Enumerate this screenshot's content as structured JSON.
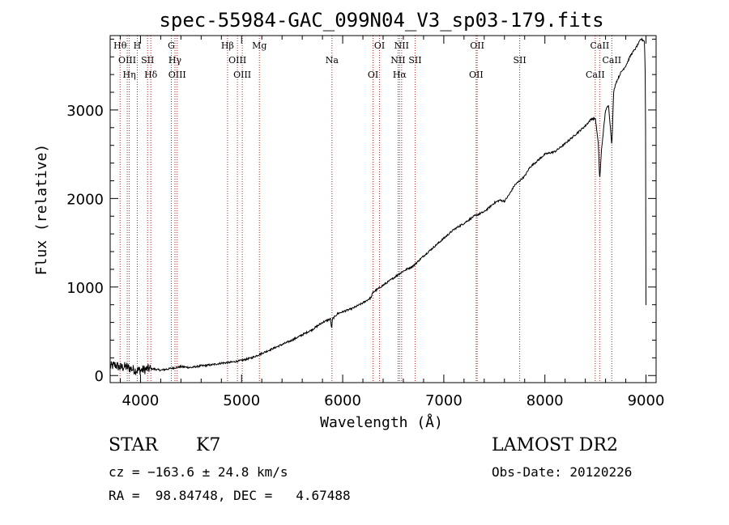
{
  "chart_data": {
    "type": "line",
    "title": "spec-55984-GAC_099N04_V3_sp03-179.fits",
    "xlabel": "Wavelength (Å)",
    "ylabel": "Flux (relative)",
    "xlim": [
      3700,
      9100
    ],
    "ylim": [
      -80,
      3840
    ],
    "xticks": [
      4000,
      5000,
      6000,
      7000,
      8000,
      9000
    ],
    "yticks": [
      0,
      1000,
      2000,
      3000
    ],
    "grid": false,
    "line_color": "#000000",
    "marker_color": "#b22222",
    "series": [
      {
        "x": [
          3700,
          3750,
          3800,
          3850,
          3900,
          3950,
          4000,
          4050,
          4100,
          4200,
          4300,
          4400,
          4500,
          4600,
          4700,
          4800,
          4900,
          5000,
          5100,
          5200,
          5300,
          5400,
          5500,
          5600,
          5700,
          5800,
          5880,
          5890,
          5900,
          5950,
          6000,
          6100,
          6200,
          6280,
          6300,
          6400,
          6500,
          6560,
          6600,
          6700,
          6800,
          6900,
          7000,
          7100,
          7200,
          7300,
          7400,
          7500,
          7550,
          7600,
          7650,
          7700,
          7750,
          7800,
          7850,
          7900,
          8000,
          8100,
          8200,
          8300,
          8400,
          8460,
          8500,
          8530,
          8542,
          8560,
          8600,
          8630,
          8662,
          8680,
          8700,
          8750,
          8800,
          8850,
          8900,
          8950,
          8985,
          8995,
          9000
        ],
        "values": [
          100,
          120,
          90,
          100,
          80,
          60,
          60,
          70,
          80,
          60,
          80,
          100,
          90,
          110,
          120,
          140,
          150,
          170,
          200,
          250,
          300,
          350,
          400,
          460,
          520,
          600,
          640,
          520,
          640,
          700,
          720,
          760,
          820,
          880,
          940,
          1020,
          1100,
          1150,
          1180,
          1240,
          1350,
          1450,
          1550,
          1650,
          1720,
          1800,
          1850,
          1950,
          1980,
          1970,
          2050,
          2150,
          2200,
          2250,
          2350,
          2400,
          2500,
          2530,
          2620,
          2720,
          2820,
          2900,
          2900,
          2600,
          2200,
          2550,
          3000,
          3050,
          2600,
          3200,
          3300,
          3420,
          3500,
          3620,
          3700,
          3800,
          3780,
          3300,
          800
        ]
      }
    ],
    "lines": [
      {
        "name": "Hθ",
        "x": 3798
      },
      {
        "name": "OIII",
        "x": 3869
      },
      {
        "name": "Hη",
        "x": 3889
      },
      {
        "name": "H",
        "x": 3968
      },
      {
        "name": "SII",
        "x": 4070
      },
      {
        "name": "Hδ",
        "x": 4102
      },
      {
        "name": "G",
        "x": 4305
      },
      {
        "name": "Hγ",
        "x": 4341
      },
      {
        "name": "OIII",
        "x": 4363
      },
      {
        "name": "Hβ",
        "x": 4861
      },
      {
        "name": "OIII",
        "x": 4959
      },
      {
        "name": "OIII",
        "x": 5007
      },
      {
        "name": "Mg",
        "x": 5176
      },
      {
        "name": "Na",
        "x": 5894
      },
      {
        "name": "OI",
        "x": 6300
      },
      {
        "name": "OI",
        "x": 6364
      },
      {
        "name": "NII",
        "x": 6548
      },
      {
        "name": "Hα",
        "x": 6563
      },
      {
        "name": "NII",
        "x": 6583
      },
      {
        "name": "SII",
        "x": 6716
      },
      {
        "name": "OII",
        "x": 7320
      },
      {
        "name": "OII",
        "x": 7330
      },
      {
        "name": "SII",
        "x": 7751
      },
      {
        "name": "CaII",
        "x": 8498
      },
      {
        "name": "CaII",
        "x": 8542
      },
      {
        "name": "CaII",
        "x": 8662
      }
    ]
  },
  "info": {
    "class": "STAR",
    "subclass": "K7",
    "survey": "LAMOST DR2",
    "cz": "cz = −163.6 ± 24.8 km/s",
    "obs_date": "Obs-Date: 20120226",
    "radec": "RA =  98.84748, DEC =   4.67488"
  }
}
